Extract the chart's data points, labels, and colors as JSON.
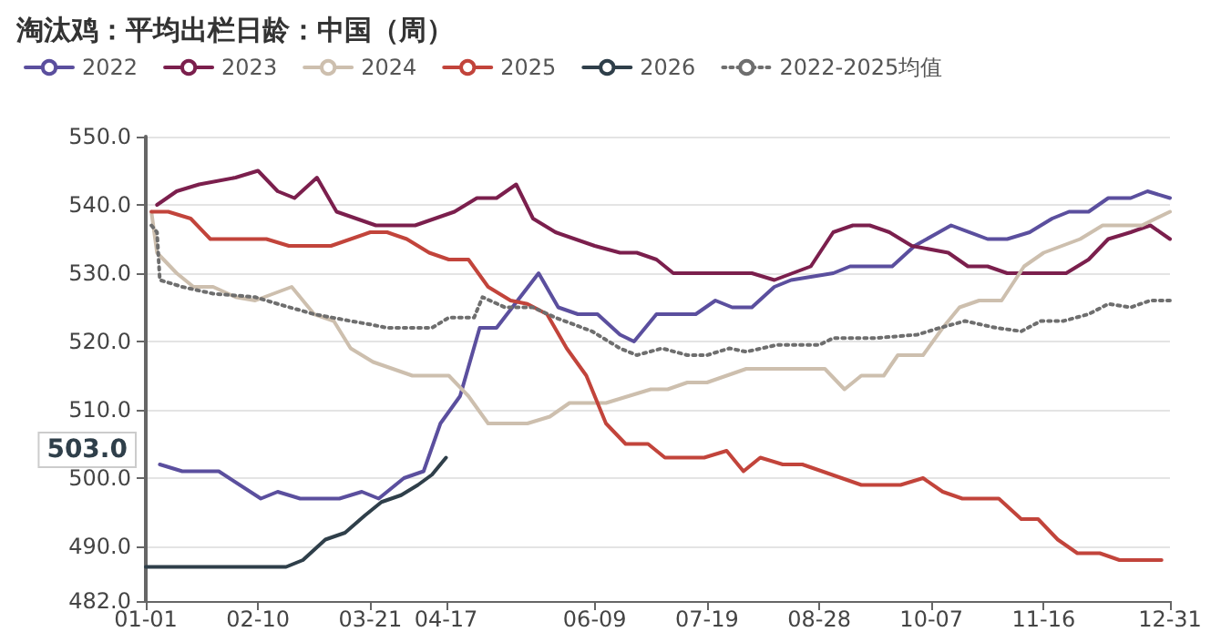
{
  "chart_data": {
    "type": "line",
    "title": "淘汰鸡：平均出栏日龄：中国（周）",
    "xlim": [
      "--01-01",
      "--12-31"
    ],
    "xticks": [
      {
        "value": "--01-01",
        "label": "01-01"
      },
      {
        "value": "--02-10",
        "label": "02-10"
      },
      {
        "value": "--03-21",
        "label": "03-21"
      },
      {
        "value": "--04-17",
        "label": "04-17"
      },
      {
        "value": "--06-09",
        "label": "06-09"
      },
      {
        "value": "--07-19",
        "label": "07-19"
      },
      {
        "value": "--08-28",
        "label": "08-28"
      },
      {
        "value": "--10-07",
        "label": "10-07"
      },
      {
        "value": "--11-16",
        "label": "11-16"
      },
      {
        "value": "--12-31",
        "label": "12-31"
      }
    ],
    "ylim": [
      482,
      550
    ],
    "yticks": [
      {
        "value": 482,
        "label": "482.0"
      },
      {
        "value": 490,
        "label": "490.0"
      },
      {
        "value": 500,
        "label": "500.0"
      },
      {
        "value": 510,
        "label": "510.0"
      },
      {
        "value": 520,
        "label": "520.0"
      },
      {
        "value": 530,
        "label": "530.0"
      },
      {
        "value": 540,
        "label": "540.0"
      },
      {
        "value": 550,
        "label": "550.0"
      }
    ],
    "grid": "y",
    "legend": "top left",
    "line_style": "solid",
    "annotations": [
      "503.0"
    ],
    "series": [
      {
        "name": "2022",
        "color": "#5b4f9e",
        "x": [
          "--01-06",
          "--01-14",
          "--01-27",
          "--02-11",
          "--02-17",
          "--02-25",
          "--03-10",
          "--03-18",
          "--03-24",
          "--04-02",
          "--04-09",
          "--04-15",
          "--04-22",
          "--04-29",
          "--05-05",
          "--05-20",
          "--05-27",
          "--06-03",
          "--06-10",
          "--06-18",
          "--06-23",
          "--07-01",
          "--07-15",
          "--07-22",
          "--07-28",
          "--08-04",
          "--08-12",
          "--08-18",
          "--09-02",
          "--09-08",
          "--09-23",
          "--10-01",
          "--10-14",
          "--10-27",
          "--11-03",
          "--11-11",
          "--11-19",
          "--11-25",
          "--12-02",
          "--12-09",
          "--12-17",
          "--12-23",
          "--12-31"
        ],
        "values": [
          502,
          501,
          501,
          497,
          498,
          497,
          497,
          498,
          497,
          500,
          501,
          508,
          512,
          522,
          522,
          530,
          525,
          524,
          524,
          521,
          520,
          524,
          524,
          526,
          525,
          525,
          528,
          529,
          530,
          531,
          531,
          534,
          537,
          535,
          535,
          536,
          538,
          539,
          539,
          541,
          541,
          542,
          541
        ]
      },
      {
        "name": "2023",
        "color": "#7b1f4d",
        "x": [
          "--01-05",
          "--01-12",
          "--01-20",
          "--02-02",
          "--02-10",
          "--02-17",
          "--02-23",
          "--03-02",
          "--03-09",
          "--03-23",
          "--04-06",
          "--04-20",
          "--04-28",
          "--05-05",
          "--05-12",
          "--05-18",
          "--05-26",
          "--06-09",
          "--06-18",
          "--06-24",
          "--07-01",
          "--07-07",
          "--08-04",
          "--08-12",
          "--08-25",
          "--09-02",
          "--09-09",
          "--09-15",
          "--09-22",
          "--09-30",
          "--10-13",
          "--10-20",
          "--10-27",
          "--11-03",
          "--11-24",
          "--12-02",
          "--12-09",
          "--12-17",
          "--12-24",
          "--12-31"
        ],
        "values": [
          540,
          542,
          543,
          544,
          545,
          542,
          541,
          544,
          539,
          537,
          537,
          539,
          541,
          541,
          543,
          538,
          536,
          534,
          533,
          533,
          532,
          530,
          530,
          529,
          531,
          536,
          537,
          537,
          536,
          534,
          533,
          531,
          531,
          530,
          530,
          532,
          535,
          536,
          537,
          535
        ]
      },
      {
        "name": "2024",
        "color": "#cdbfae",
        "x": [
          "--01-03",
          "--01-05",
          "--01-12",
          "--01-18",
          "--01-25",
          "--02-02",
          "--02-09",
          "--02-22",
          "--03-01",
          "--03-08",
          "--03-14",
          "--03-22",
          "--04-05",
          "--04-18",
          "--04-25",
          "--05-02",
          "--05-16",
          "--05-24",
          "--05-31",
          "--06-13",
          "--06-29",
          "--07-05",
          "--07-12",
          "--07-19",
          "--08-02",
          "--08-30",
          "--09-06",
          "--09-12",
          "--09-20",
          "--09-25",
          "--10-04",
          "--10-11",
          "--10-17",
          "--10-24",
          "--11-01",
          "--11-09",
          "--11-16",
          "--11-29",
          "--12-07",
          "--12-21",
          "--12-31"
        ],
        "values": [
          539,
          533,
          530,
          528,
          528,
          526.5,
          526,
          528,
          524,
          523,
          519,
          517,
          515,
          515,
          512,
          508,
          508,
          509,
          511,
          511,
          513,
          513,
          514,
          514,
          516,
          516,
          513,
          515,
          515,
          518,
          518,
          522,
          525,
          526,
          526,
          531,
          533,
          535,
          537,
          537,
          539
        ]
      },
      {
        "name": "2025",
        "color": "#c2443b",
        "x": [
          "--01-03",
          "--01-09",
          "--01-17",
          "--01-24",
          "--02-13",
          "--02-21",
          "--03-07",
          "--03-21",
          "--03-27",
          "--04-03",
          "--04-11",
          "--04-18",
          "--04-25",
          "--05-02",
          "--05-10",
          "--05-16",
          "--05-23",
          "--05-30",
          "--06-06",
          "--06-13",
          "--06-20",
          "--06-28",
          "--07-04",
          "--07-18",
          "--07-26",
          "--08-01",
          "--08-07",
          "--08-15",
          "--08-22",
          "--09-12",
          "--09-26",
          "--10-04",
          "--10-11",
          "--10-18",
          "--10-31",
          "--11-08",
          "--11-14",
          "--11-21",
          "--11-28",
          "--12-06",
          "--12-13",
          "--12-28"
        ],
        "values": [
          539,
          539,
          538,
          535,
          535,
          534,
          534,
          536,
          536,
          535,
          533,
          532,
          532,
          528,
          526,
          525.5,
          524,
          519,
          515,
          508,
          505,
          505,
          503,
          503,
          504,
          501,
          503,
          502,
          502,
          499,
          499,
          500,
          498,
          497,
          497,
          494,
          494,
          491,
          489,
          489,
          488,
          488
        ]
      },
      {
        "name": "2026",
        "color": "#2f3f4a",
        "x": [
          "--01-01",
          "--02-20",
          "--02-26",
          "--03-05",
          "--03-12",
          "--03-19",
          "--03-25",
          "--04-01",
          "--04-07",
          "--04-12",
          "--04-17"
        ],
        "values": [
          487,
          487,
          488,
          491,
          492,
          494.5,
          496.5,
          497.5,
          499,
          500.5,
          503
        ]
      },
      {
        "name": "2022-2025均值",
        "color": "#6e6e6e",
        "line_style": "dotted",
        "x": [
          "--01-03",
          "--01-05",
          "--01-06",
          "--01-14",
          "--01-25",
          "--02-09",
          "--02-17",
          "--03-01",
          "--03-14",
          "--03-21",
          "--03-27",
          "--04-12",
          "--04-18",
          "--04-27",
          "--04-30",
          "--05-08",
          "--05-18",
          "--05-26",
          "--06-08",
          "--06-18",
          "--06-24",
          "--07-03",
          "--07-12",
          "--07-19",
          "--07-27",
          "--08-02",
          "--08-13",
          "--08-28",
          "--09-02",
          "--09-17",
          "--10-02",
          "--10-10",
          "--10-19",
          "--10-30",
          "--11-08",
          "--11-15",
          "--11-23",
          "--12-02",
          "--12-09",
          "--12-17",
          "--12-24",
          "--12-31"
        ],
        "values": [
          537,
          536,
          529,
          528,
          527,
          526.5,
          525.5,
          524,
          523,
          522.5,
          522,
          522,
          523.5,
          523.5,
          526.5,
          525,
          525,
          523.5,
          521.5,
          519,
          518,
          519,
          518,
          518,
          519,
          518.5,
          519.5,
          519.5,
          520.5,
          520.5,
          521,
          522,
          523,
          522,
          521.5,
          523,
          523,
          524,
          525.5,
          525,
          526,
          526
        ]
      }
    ]
  }
}
